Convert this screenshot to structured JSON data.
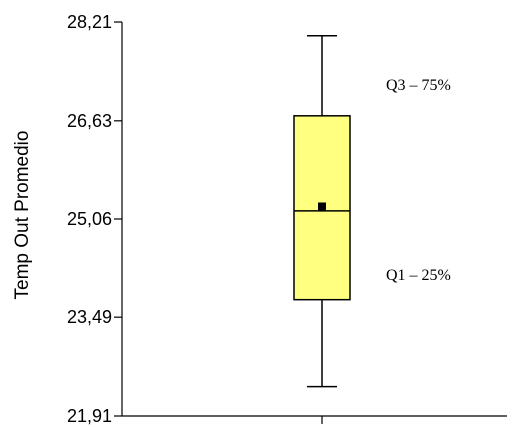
{
  "chart_data": {
    "type": "boxplot",
    "ylabel": "Temp Out Promedio",
    "ylim": [
      21.91,
      28.21
    ],
    "yticks": [
      {
        "value": 28.21,
        "label": "28,21"
      },
      {
        "value": 26.63,
        "label": "26,63"
      },
      {
        "value": 25.06,
        "label": "25,06"
      },
      {
        "value": 23.49,
        "label": "23,49"
      },
      {
        "value": 21.91,
        "label": "21,91"
      }
    ],
    "box": {
      "whisker_high": 27.99,
      "q3": 26.71,
      "median": 25.19,
      "mean": 25.26,
      "q1": 23.77,
      "whisker_low": 22.38
    },
    "annotations": [
      {
        "text": "Q3 – 75%",
        "value": 26.71
      },
      {
        "text": "Q1 – 25%",
        "value": 23.77
      }
    ],
    "colors": {
      "box_fill": "#ffff80",
      "stroke": "#000000"
    }
  }
}
